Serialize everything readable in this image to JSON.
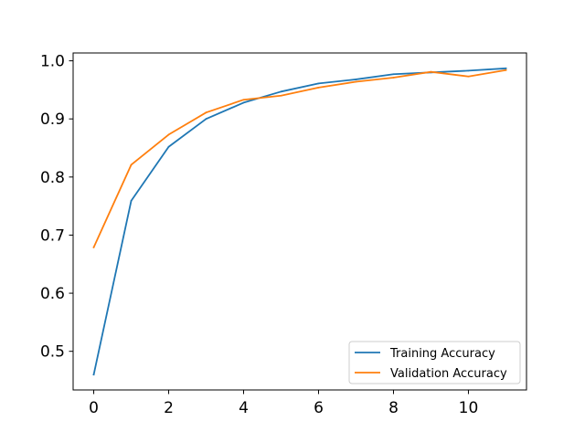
{
  "chart_data": {
    "type": "line",
    "title": "",
    "xlabel": "",
    "ylabel": "",
    "xlim": [
      -0.55,
      11.55
    ],
    "ylim": [
      0.4335,
      1.0135
    ],
    "xticks": [
      0,
      2,
      4,
      6,
      8,
      10
    ],
    "xtick_labels": [
      "0",
      "2",
      "4",
      "6",
      "8",
      "10"
    ],
    "yticks": [
      0.5,
      0.6,
      0.7,
      0.8,
      0.9,
      1.0
    ],
    "ytick_labels": [
      "0.5",
      "0.6",
      "0.7",
      "0.8",
      "0.9",
      "1.0"
    ],
    "grid": false,
    "legend_position": "lower-right",
    "x": [
      0,
      1,
      2,
      3,
      4,
      5,
      6,
      7,
      8,
      9,
      10,
      11
    ],
    "series": [
      {
        "name": "Training Accuracy",
        "color": "#1f77b4",
        "values": [
          0.46,
          0.759,
          0.852,
          0.9,
          0.928,
          0.947,
          0.961,
          0.968,
          0.977,
          0.98,
          0.983,
          0.987
        ]
      },
      {
        "name": "Validation Accuracy",
        "color": "#ff7f0e",
        "values": [
          0.679,
          0.821,
          0.873,
          0.911,
          0.933,
          0.94,
          0.954,
          0.964,
          0.971,
          0.981,
          0.973,
          0.984
        ]
      }
    ]
  }
}
